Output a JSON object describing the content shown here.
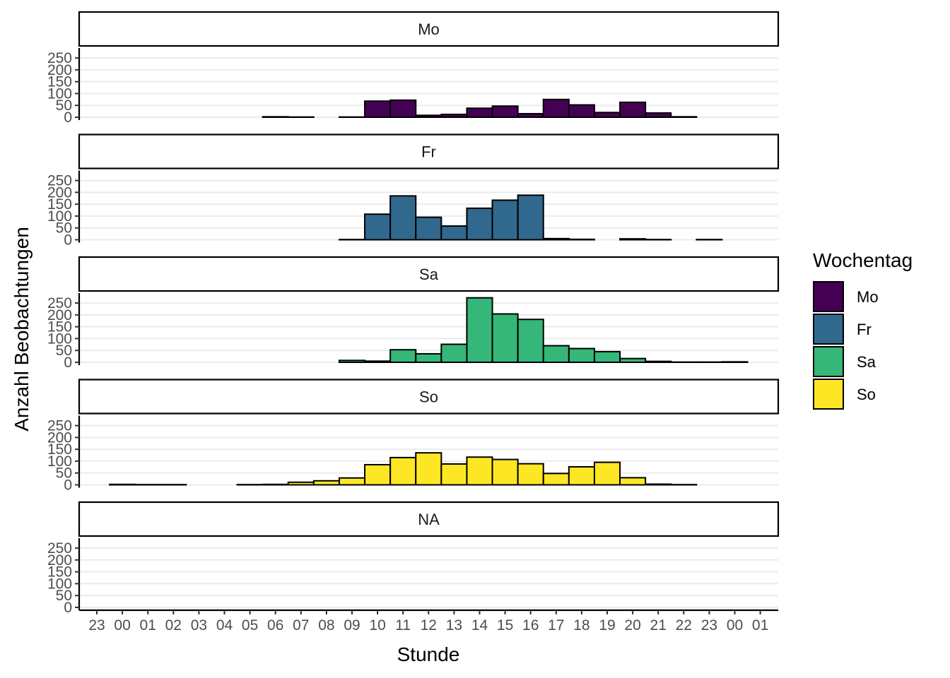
{
  "chart_data": {
    "type": "bar",
    "subtype": "faceted-histogram",
    "facet_by": "Wochentag",
    "xlabel": "Stunde",
    "ylabel": "Anzahl Beobachtungen",
    "ylim": [
      0,
      280
    ],
    "y_ticks": [
      0,
      50,
      100,
      150,
      200,
      250
    ],
    "x_tick_labels": [
      "23",
      "00",
      "01",
      "02",
      "03",
      "04",
      "05",
      "06",
      "07",
      "08",
      "09",
      "10",
      "11",
      "12",
      "13",
      "14",
      "15",
      "16",
      "17",
      "18",
      "19",
      "20",
      "21",
      "22",
      "23",
      "00",
      "01"
    ],
    "grid": "horizontal",
    "legend": {
      "title": "Wochentag",
      "position": "right",
      "entries": [
        {
          "label": "Mo",
          "color": "#440154"
        },
        {
          "label": "Fr",
          "color": "#31688E"
        },
        {
          "label": "Sa",
          "color": "#35B779"
        },
        {
          "label": "So",
          "color": "#FDE725"
        }
      ]
    },
    "bins_start_label": "00",
    "bin_width_hours": 1,
    "facets": [
      {
        "label": "Mo",
        "color": "#440154",
        "values": [
          0,
          0,
          0,
          0,
          0,
          0,
          2,
          1,
          0,
          1,
          68,
          72,
          8,
          12,
          38,
          47,
          15,
          75,
          52,
          20,
          63,
          18,
          2,
          0,
          0
        ]
      },
      {
        "label": "Fr",
        "color": "#31688E",
        "values": [
          0,
          0,
          0,
          0,
          0,
          0,
          0,
          0,
          0,
          1,
          108,
          185,
          95,
          58,
          133,
          167,
          188,
          5,
          2,
          0,
          4,
          1,
          0,
          1,
          0
        ]
      },
      {
        "label": "Sa",
        "color": "#35B779",
        "values": [
          0,
          0,
          0,
          0,
          0,
          0,
          0,
          0,
          0,
          8,
          5,
          53,
          36,
          76,
          272,
          204,
          181,
          70,
          58,
          45,
          16,
          4,
          1,
          1,
          2
        ]
      },
      {
        "label": "So",
        "color": "#FDE725",
        "values": [
          2,
          1,
          1,
          0,
          0,
          1,
          2,
          11,
          17,
          29,
          85,
          115,
          135,
          88,
          117,
          107,
          89,
          48,
          76,
          95,
          30,
          3,
          1,
          0,
          0
        ]
      },
      {
        "label": "NA",
        "color": "#BEBEBE",
        "values": [
          0,
          0,
          0,
          0,
          0,
          0,
          0,
          0,
          0,
          0,
          0,
          0,
          0,
          0,
          0,
          0,
          0,
          0,
          0,
          0,
          0,
          0,
          0,
          0,
          0
        ]
      }
    ]
  }
}
